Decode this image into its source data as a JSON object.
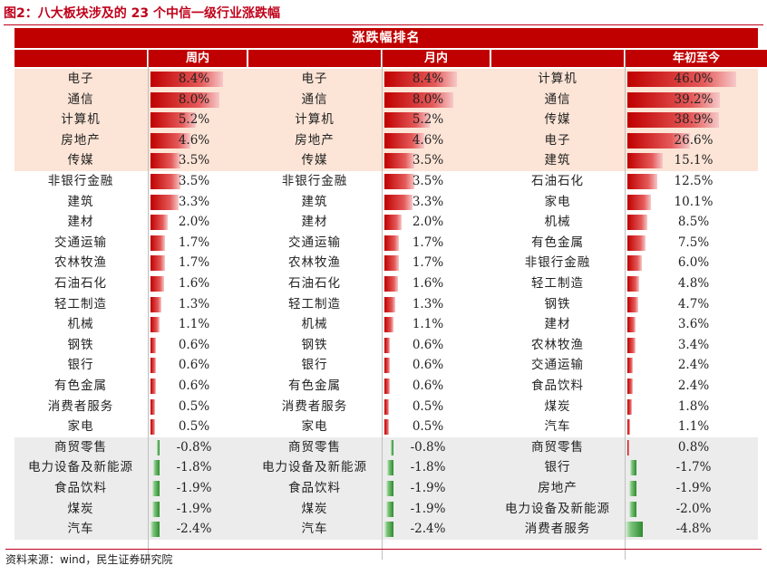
{
  "title": "图2：八大板块涉及的 23 个中信一级行业涨跌幅",
  "banner": "涨跌幅排名",
  "source": "资料来源：wind，民生证券研究院",
  "colors": {
    "header": "#c00000",
    "top_band": "#fce4d6",
    "neg_band": "#ececec",
    "pos_bar": "#c00000",
    "neg_bar": "#2e8b2e"
  },
  "chart_data": {
    "type": "table",
    "groups": [
      {
        "header": "周内",
        "scale_max": 8.4,
        "rows": [
          {
            "name": "电子",
            "value": 8.4,
            "label": "8.4%"
          },
          {
            "name": "通信",
            "value": 8.0,
            "label": "8.0%"
          },
          {
            "name": "计算机",
            "value": 5.2,
            "label": "5.2%"
          },
          {
            "name": "房地产",
            "value": 4.6,
            "label": "4.6%"
          },
          {
            "name": "传媒",
            "value": 3.5,
            "label": "3.5%"
          },
          {
            "name": "非银行金融",
            "value": 3.5,
            "label": "3.5%"
          },
          {
            "name": "建筑",
            "value": 3.3,
            "label": "3.3%"
          },
          {
            "name": "建材",
            "value": 2.0,
            "label": "2.0%"
          },
          {
            "name": "交通运输",
            "value": 1.7,
            "label": "1.7%"
          },
          {
            "name": "农林牧渔",
            "value": 1.7,
            "label": "1.7%"
          },
          {
            "name": "石油石化",
            "value": 1.6,
            "label": "1.6%"
          },
          {
            "name": "轻工制造",
            "value": 1.3,
            "label": "1.3%"
          },
          {
            "name": "机械",
            "value": 1.1,
            "label": "1.1%"
          },
          {
            "name": "钢铁",
            "value": 0.6,
            "label": "0.6%"
          },
          {
            "name": "银行",
            "value": 0.6,
            "label": "0.6%"
          },
          {
            "name": "有色金属",
            "value": 0.6,
            "label": "0.6%"
          },
          {
            "name": "消费者服务",
            "value": 0.5,
            "label": "0.5%"
          },
          {
            "name": "家电",
            "value": 0.5,
            "label": "0.5%"
          },
          {
            "name": "商贸零售",
            "value": -0.8,
            "label": "-0.8%"
          },
          {
            "name": "电力设备及新能源",
            "value": -1.8,
            "label": "-1.8%"
          },
          {
            "name": "食品饮料",
            "value": -1.9,
            "label": "-1.9%"
          },
          {
            "name": "煤炭",
            "value": -1.9,
            "label": "-1.9%"
          },
          {
            "name": "汽车",
            "value": -2.4,
            "label": "-2.4%"
          }
        ]
      },
      {
        "header": "月内",
        "scale_max": 8.4,
        "rows": [
          {
            "name": "电子",
            "value": 8.4,
            "label": "8.4%"
          },
          {
            "name": "通信",
            "value": 8.0,
            "label": "8.0%"
          },
          {
            "name": "计算机",
            "value": 5.2,
            "label": "5.2%"
          },
          {
            "name": "房地产",
            "value": 4.6,
            "label": "4.6%"
          },
          {
            "name": "传媒",
            "value": 3.5,
            "label": "3.5%"
          },
          {
            "name": "非银行金融",
            "value": 3.5,
            "label": "3.5%"
          },
          {
            "name": "建筑",
            "value": 3.3,
            "label": "3.3%"
          },
          {
            "name": "建材",
            "value": 2.0,
            "label": "2.0%"
          },
          {
            "name": "交通运输",
            "value": 1.7,
            "label": "1.7%"
          },
          {
            "name": "农林牧渔",
            "value": 1.7,
            "label": "1.7%"
          },
          {
            "name": "石油石化",
            "value": 1.6,
            "label": "1.6%"
          },
          {
            "name": "轻工制造",
            "value": 1.3,
            "label": "1.3%"
          },
          {
            "name": "机械",
            "value": 1.1,
            "label": "1.1%"
          },
          {
            "name": "钢铁",
            "value": 0.6,
            "label": "0.6%"
          },
          {
            "name": "银行",
            "value": 0.6,
            "label": "0.6%"
          },
          {
            "name": "有色金属",
            "value": 0.6,
            "label": "0.6%"
          },
          {
            "name": "消费者服务",
            "value": 0.5,
            "label": "0.5%"
          },
          {
            "name": "家电",
            "value": 0.5,
            "label": "0.5%"
          },
          {
            "name": "商贸零售",
            "value": -0.8,
            "label": "-0.8%"
          },
          {
            "name": "电力设备及新能源",
            "value": -1.8,
            "label": "-1.8%"
          },
          {
            "name": "食品饮料",
            "value": -1.9,
            "label": "-1.9%"
          },
          {
            "name": "煤炭",
            "value": -1.9,
            "label": "-1.9%"
          },
          {
            "name": "汽车",
            "value": -2.4,
            "label": "-2.4%"
          }
        ]
      },
      {
        "header": "年初至今",
        "scale_max": 46.0,
        "rows": [
          {
            "name": "计算机",
            "value": 46.0,
            "label": "46.0%"
          },
          {
            "name": "通信",
            "value": 39.2,
            "label": "39.2%"
          },
          {
            "name": "传媒",
            "value": 38.9,
            "label": "38.9%"
          },
          {
            "name": "电子",
            "value": 26.6,
            "label": "26.6%"
          },
          {
            "name": "建筑",
            "value": 15.1,
            "label": "15.1%"
          },
          {
            "name": "石油石化",
            "value": 12.5,
            "label": "12.5%"
          },
          {
            "name": "家电",
            "value": 10.1,
            "label": "10.1%"
          },
          {
            "name": "机械",
            "value": 8.5,
            "label": "8.5%"
          },
          {
            "name": "有色金属",
            "value": 7.5,
            "label": "7.5%"
          },
          {
            "name": "非银行金融",
            "value": 6.0,
            "label": "6.0%"
          },
          {
            "name": "轻工制造",
            "value": 4.8,
            "label": "4.8%"
          },
          {
            "name": "钢铁",
            "value": 4.7,
            "label": "4.7%"
          },
          {
            "name": "建材",
            "value": 3.6,
            "label": "3.6%"
          },
          {
            "name": "农林牧渔",
            "value": 3.4,
            "label": "3.4%"
          },
          {
            "name": "交通运输",
            "value": 2.4,
            "label": "2.4%"
          },
          {
            "name": "食品饮料",
            "value": 2.4,
            "label": "2.4%"
          },
          {
            "name": "煤炭",
            "value": 1.8,
            "label": "1.8%"
          },
          {
            "name": "汽车",
            "value": 1.1,
            "label": "1.1%"
          },
          {
            "name": "商贸零售",
            "value": 0.8,
            "label": "0.8%"
          },
          {
            "name": "银行",
            "value": -1.7,
            "label": "-1.7%"
          },
          {
            "name": "房地产",
            "value": -1.9,
            "label": "-1.9%"
          },
          {
            "name": "电力设备及新能源",
            "value": -2.0,
            "label": "-2.0%"
          },
          {
            "name": "消费者服务",
            "value": -4.8,
            "label": "-4.8%"
          }
        ]
      }
    ]
  }
}
